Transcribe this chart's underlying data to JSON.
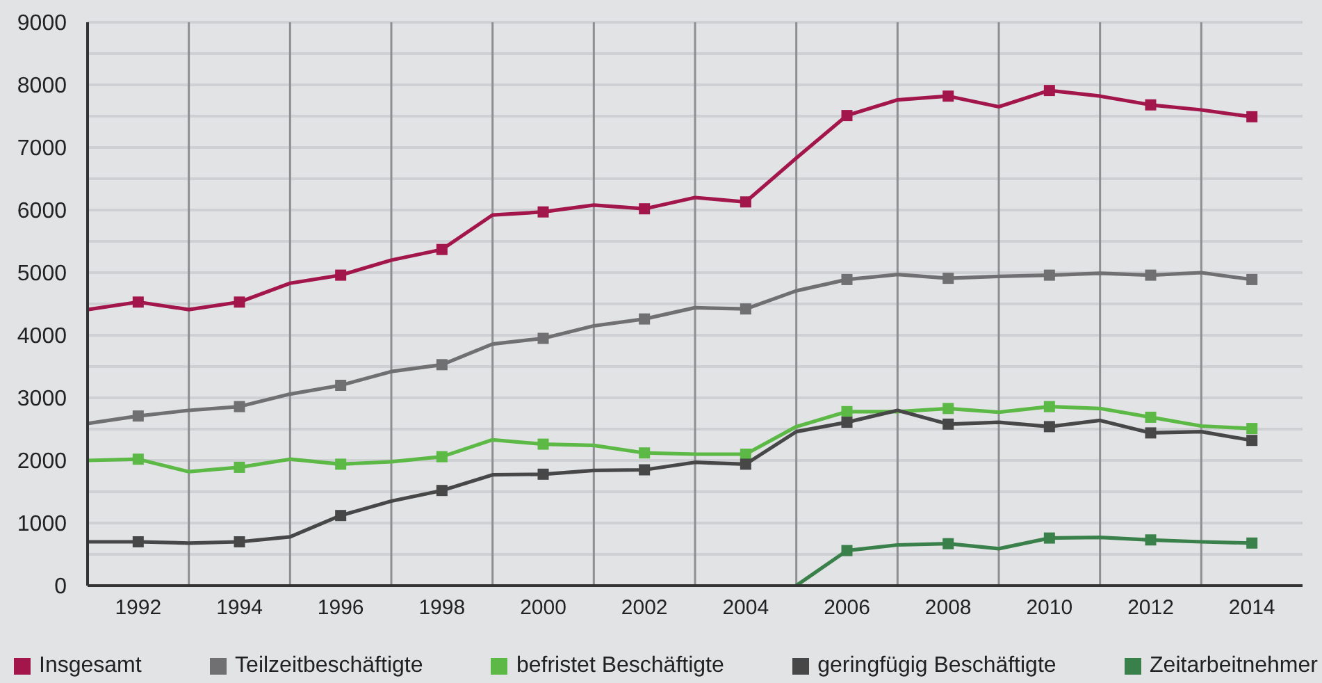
{
  "chart_data": {
    "type": "line",
    "x": [
      1991,
      1992,
      1993,
      1994,
      1995,
      1996,
      1997,
      1998,
      1999,
      2000,
      2001,
      2002,
      2003,
      2004,
      2005,
      2006,
      2007,
      2008,
      2009,
      2010,
      2011,
      2012,
      2013,
      2014
    ],
    "series": [
      {
        "name": "Insgesamt",
        "color": "#a3164b",
        "values": [
          4410,
          4530,
          4410,
          4530,
          4830,
          4960,
          5200,
          5370,
          5920,
          5970,
          6080,
          6020,
          6200,
          6130,
          6830,
          7510,
          7760,
          7820,
          7650,
          7910,
          7820,
          7680,
          7600,
          7490
        ]
      },
      {
        "name": "Teilzeitbeschäftigte",
        "color": "#707072",
        "values": [
          2590,
          2710,
          2800,
          2860,
          3060,
          3200,
          3420,
          3530,
          3860,
          3950,
          4150,
          4260,
          4440,
          4420,
          4710,
          4890,
          4970,
          4910,
          4940,
          4960,
          4990,
          4960,
          5000,
          4890
        ]
      },
      {
        "name": "befristet Beschäftigte",
        "color": "#5cb946",
        "values": [
          2000,
          2020,
          1820,
          1890,
          2020,
          1940,
          1980,
          2060,
          2330,
          2260,
          2240,
          2120,
          2100,
          2100,
          2540,
          2780,
          2780,
          2830,
          2770,
          2860,
          2830,
          2690,
          2550,
          2510
        ]
      },
      {
        "name": "geringfügig Beschäftigte",
        "color": "#474748",
        "values": [
          700,
          700,
          680,
          700,
          780,
          1120,
          1350,
          1520,
          1770,
          1780,
          1840,
          1850,
          1970,
          1940,
          2460,
          2610,
          2800,
          2580,
          2610,
          2540,
          2640,
          2440,
          2460,
          2320
        ]
      },
      {
        "name": "Zeitarbeitnehmer",
        "color": "#3a804b",
        "values": [
          null,
          null,
          null,
          null,
          null,
          null,
          null,
          null,
          null,
          null,
          null,
          null,
          null,
          null,
          0,
          560,
          650,
          670,
          590,
          760,
          770,
          730,
          700,
          680
        ]
      }
    ],
    "xlim": [
      1991,
      2015
    ],
    "xticks": [
      {
        "value": 1991,
        "label": null
      },
      1992,
      {
        "value": 1993,
        "label": null
      },
      1994,
      {
        "value": 1995,
        "label": null
      },
      1996,
      {
        "value": 1997,
        "label": null
      },
      1998,
      {
        "value": 1999,
        "label": null
      },
      2000,
      {
        "value": 2001,
        "label": null
      },
      2002,
      {
        "value": 2003,
        "label": null
      },
      2004,
      {
        "value": 2005,
        "label": null
      },
      2006,
      {
        "value": 2007,
        "label": null
      },
      2008,
      {
        "value": 2009,
        "label": null
      },
      2010,
      {
        "value": 2011,
        "label": null
      },
      2012,
      {
        "value": 2013,
        "label": null
      },
      2014
    ],
    "ylim": [
      0,
      9000
    ],
    "yticks": [
      0,
      {
        "value": 500,
        "label": null
      },
      1000,
      {
        "value": 1500,
        "label": null
      },
      2000,
      {
        "value": 2500,
        "label": null
      },
      3000,
      {
        "value": 3500,
        "label": null
      },
      4000,
      {
        "value": 4500,
        "label": null
      },
      5000,
      {
        "value": 5500,
        "label": null
      },
      6000,
      {
        "value": 6500,
        "label": null
      },
      7000,
      {
        "value": 7500,
        "label": null
      },
      8000,
      {
        "value": 8500,
        "label": null
      },
      9000
    ],
    "grid": true,
    "legend": "bottom",
    "marker": "square",
    "line_style": "solid"
  }
}
